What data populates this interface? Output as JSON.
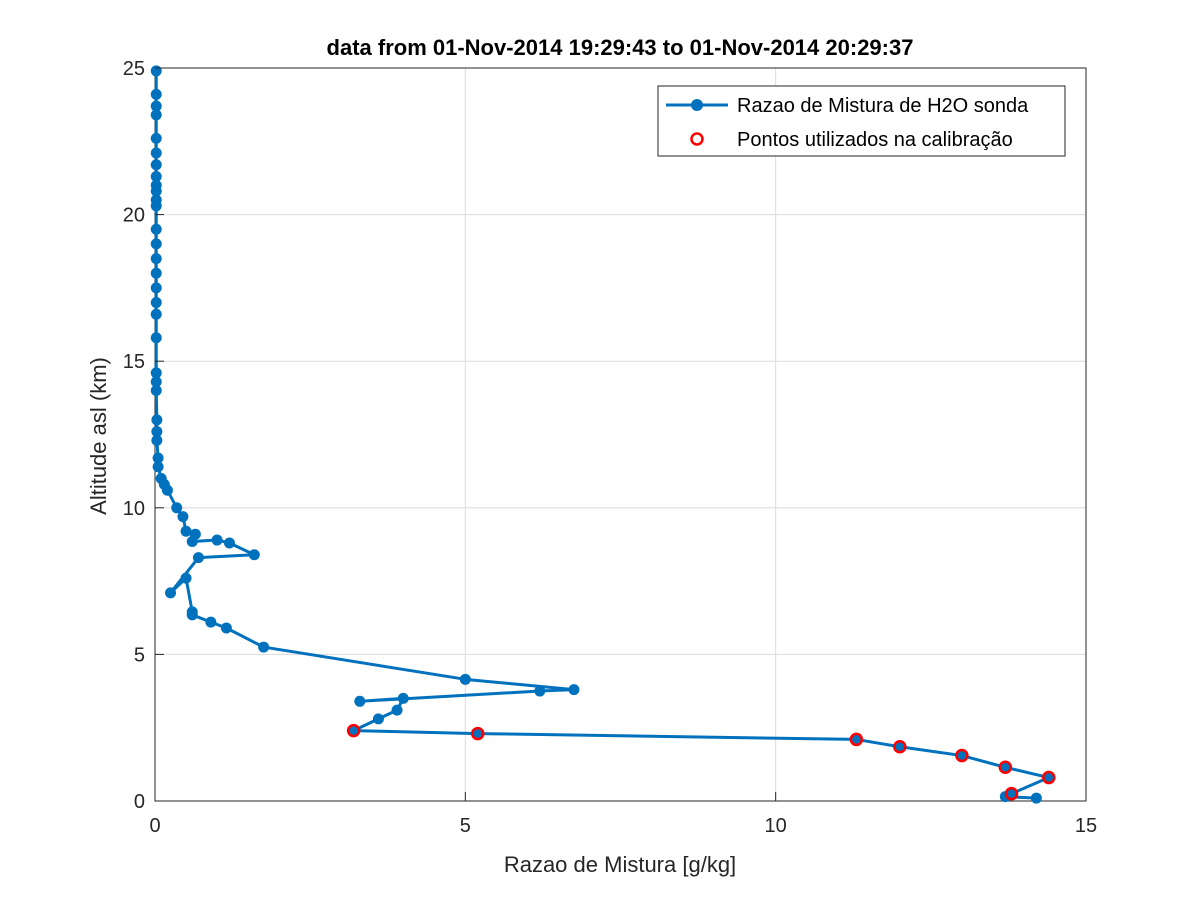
{
  "chart_data": {
    "type": "line",
    "title": "data from 01-Nov-2014 19:29:43 to 01-Nov-2014 20:29:37",
    "xlabel": "Razao de Mistura [g/kg]",
    "ylabel": "Altitude asl (km)",
    "xlim": [
      0,
      15
    ],
    "ylim": [
      0,
      25
    ],
    "xticks": [
      "0",
      "5",
      "10",
      "15"
    ],
    "yticks": [
      "0",
      "5",
      "10",
      "15",
      "20",
      "25"
    ],
    "grid": true,
    "legend_position": "top-right",
    "series": [
      {
        "name": "Razao de Mistura de H2O sonda",
        "color": "#0072BD",
        "style": "line-with-dot-markers",
        "points": [
          [
            14.2,
            0.1
          ],
          [
            13.7,
            0.15
          ],
          [
            13.8,
            0.25
          ],
          [
            14.4,
            0.8
          ],
          [
            13.7,
            1.15
          ],
          [
            13.0,
            1.55
          ],
          [
            12.0,
            1.85
          ],
          [
            11.3,
            2.1
          ],
          [
            5.2,
            2.3
          ],
          [
            3.2,
            2.4
          ],
          [
            3.6,
            2.8
          ],
          [
            3.9,
            3.1
          ],
          [
            4.0,
            3.5
          ],
          [
            3.3,
            3.4
          ],
          [
            6.2,
            3.75
          ],
          [
            6.75,
            3.8
          ],
          [
            5.0,
            4.15
          ],
          [
            1.75,
            5.25
          ],
          [
            1.15,
            5.9
          ],
          [
            0.9,
            6.1
          ],
          [
            0.6,
            6.35
          ],
          [
            0.6,
            6.45
          ],
          [
            0.5,
            7.6
          ],
          [
            0.25,
            7.1
          ],
          [
            0.7,
            8.3
          ],
          [
            1.6,
            8.4
          ],
          [
            1.2,
            8.8
          ],
          [
            1.0,
            8.9
          ],
          [
            0.6,
            8.85
          ],
          [
            0.65,
            9.1
          ],
          [
            0.5,
            9.2
          ],
          [
            0.45,
            9.7
          ],
          [
            0.35,
            10.0
          ],
          [
            0.2,
            10.6
          ],
          [
            0.15,
            10.8
          ],
          [
            0.1,
            11.0
          ],
          [
            0.05,
            11.4
          ],
          [
            0.05,
            11.7
          ],
          [
            0.03,
            12.3
          ],
          [
            0.03,
            12.6
          ],
          [
            0.03,
            13.0
          ],
          [
            0.02,
            14.0
          ],
          [
            0.02,
            14.3
          ],
          [
            0.02,
            14.6
          ],
          [
            0.02,
            15.8
          ],
          [
            0.02,
            16.6
          ],
          [
            0.02,
            17.0
          ],
          [
            0.02,
            17.5
          ],
          [
            0.02,
            18.0
          ],
          [
            0.02,
            18.5
          ],
          [
            0.02,
            19.0
          ],
          [
            0.02,
            19.5
          ],
          [
            0.02,
            20.3
          ],
          [
            0.02,
            20.5
          ],
          [
            0.02,
            20.8
          ],
          [
            0.02,
            21.0
          ],
          [
            0.02,
            21.3
          ],
          [
            0.02,
            21.7
          ],
          [
            0.02,
            22.1
          ],
          [
            0.02,
            22.6
          ],
          [
            0.02,
            23.4
          ],
          [
            0.02,
            23.7
          ],
          [
            0.02,
            24.1
          ],
          [
            0.02,
            24.9
          ]
        ]
      },
      {
        "name": "Pontos utilizados na calibração",
        "color": "#FF0000",
        "style": "circle-markers",
        "points": [
          [
            3.2,
            2.4
          ],
          [
            5.2,
            2.3
          ],
          [
            11.3,
            2.1
          ],
          [
            12.0,
            1.85
          ],
          [
            13.0,
            1.55
          ],
          [
            13.7,
            1.15
          ],
          [
            14.4,
            0.8
          ],
          [
            13.8,
            0.25
          ]
        ]
      }
    ]
  }
}
